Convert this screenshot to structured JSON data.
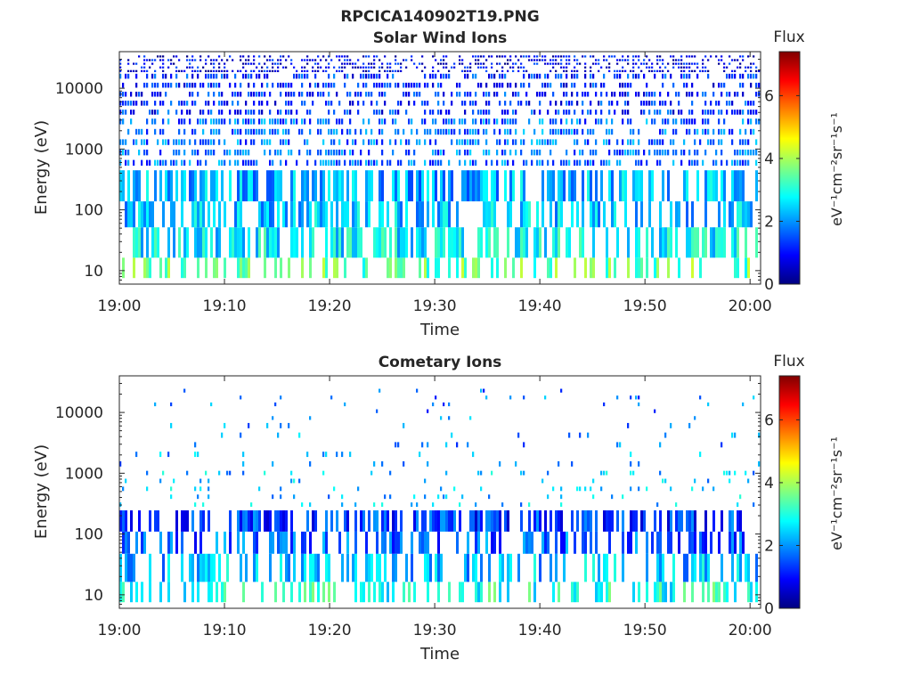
{
  "figure_title": "RPCICA140902T19.PNG",
  "colors": {
    "axis": "#262626",
    "background": "#ffffff",
    "colormap": [
      "#000080",
      "#0000ff",
      "#0080ff",
      "#00ffff",
      "#80ff80",
      "#ffff00",
      "#ff8000",
      "#ff0000",
      "#800000"
    ]
  },
  "chart_data": [
    {
      "type": "heatmap",
      "title": "Solar Wind Ions",
      "xlabel": "Time",
      "ylabel": "Energy (eV)",
      "yscale": "log",
      "xlim": [
        "19:00",
        "20:01"
      ],
      "ylim": [
        6,
        40000
      ],
      "x_ticks": [
        "19:00",
        "19:10",
        "19:20",
        "19:30",
        "19:40",
        "19:50",
        "20:00"
      ],
      "y_ticks": [
        "10",
        "100",
        "1000",
        "10000"
      ],
      "colorbar": {
        "title": "Flux",
        "label": "eV⁻¹cm⁻²sr⁻¹s⁻¹",
        "range": [
          0,
          7.4
        ],
        "ticks": [
          "0",
          "2",
          "4",
          "6"
        ]
      },
      "rows": [
        {
          "energy_eV": 9.5,
          "typical_flux": 3.5,
          "occupancy": 0.38
        },
        {
          "energy_eV": 28,
          "typical_flux": 2.7,
          "occupancy": 0.55
        },
        {
          "energy_eV": 95,
          "typical_flux": 2.4,
          "occupancy": 0.5
        },
        {
          "energy_eV": 200,
          "typical_flux": 2.2,
          "occupancy": 0.6
        },
        {
          "energy_eV": 1000,
          "typical_flux": 1.7,
          "occupancy": 0.55
        },
        {
          "energy_eV": 10000,
          "typical_flux": 1.2,
          "occupancy": 0.5
        },
        {
          "energy_eV": 30000,
          "typical_flux": 0.8,
          "occupancy": 0.45
        }
      ]
    },
    {
      "type": "heatmap",
      "title": "Cometary Ions",
      "xlabel": "Time",
      "ylabel": "Energy (eV)",
      "yscale": "log",
      "xlim": [
        "19:00",
        "20:01"
      ],
      "ylim": [
        6,
        40000
      ],
      "x_ticks": [
        "19:00",
        "19:10",
        "19:20",
        "19:30",
        "19:40",
        "19:50",
        "20:00"
      ],
      "y_ticks": [
        "10",
        "100",
        "1000",
        "10000"
      ],
      "colorbar": {
        "title": "Flux",
        "label": "eV⁻¹cm⁻²sr⁻¹s⁻¹",
        "range": [
          0,
          7.4
        ],
        "ticks": [
          "0",
          "2",
          "4",
          "6"
        ]
      },
      "rows": [
        {
          "energy_eV": 9.5,
          "typical_flux": 3.0,
          "occupancy": 0.35
        },
        {
          "energy_eV": 28,
          "typical_flux": 2.3,
          "occupancy": 0.45
        },
        {
          "energy_eV": 80,
          "typical_flux": 1.6,
          "occupancy": 0.45
        },
        {
          "energy_eV": 150,
          "typical_flux": 1.3,
          "occupancy": 0.55
        },
        {
          "energy_eV": 400,
          "typical_flux": 2.3,
          "occupancy": 0.08
        },
        {
          "energy_eV": 3000,
          "typical_flux": 2.0,
          "occupancy": 0.05
        },
        {
          "energy_eV": 15000,
          "typical_flux": 1.8,
          "occupancy": 0.03
        }
      ]
    }
  ]
}
